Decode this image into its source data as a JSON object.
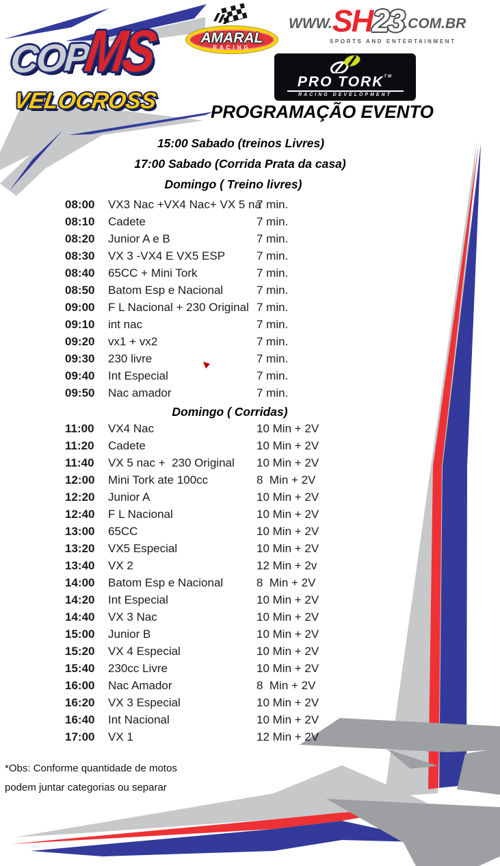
{
  "logos": {
    "copa_ms": {
      "copa": "COPA",
      "ms": "MS",
      "velocross": "VELOCROSS"
    },
    "amaral": {
      "name": "AMARAL",
      "sub": "RACING"
    },
    "sh23": {
      "www": "WWW.",
      "sh": "SH",
      "num": "23",
      "domain": ".COM.BR",
      "sub": "SPORTS AND ENTERTAINMENT"
    },
    "protork": {
      "name": "PRO TORK",
      "tm": "TM",
      "sub": "RACING DEVELOPMENT"
    }
  },
  "title": "PROGRAMAÇÃO EVENTO",
  "pre_schedule": [
    "15:00 Sabado (treinos Livres)",
    "17:00 Sabado (Corrida Prata da casa)"
  ],
  "sections": [
    {
      "header": "Domingo ( Treino livres)",
      "rows": [
        {
          "time": "08:00",
          "category": "VX3 Nac +VX4 Nac+ VX 5 na",
          "duration": "7 min."
        },
        {
          "time": "08:10",
          "category": "Cadete",
          "duration": "7 min."
        },
        {
          "time": "08:20",
          "category": "Junior A e B",
          "duration": "7 min."
        },
        {
          "time": "08:30",
          "category": "VX 3 -VX4 E VX5 ESP",
          "duration": "7 min."
        },
        {
          "time": "08:40",
          "category": "65CC + Mini Tork",
          "duration": "7 min."
        },
        {
          "time": "08:50",
          "category": "Batom Esp e Nacional",
          "duration": "7 min."
        },
        {
          "time": "09:00",
          "category": "F L Nacional + 230 Original",
          "duration": "7 min."
        },
        {
          "time": "09:10",
          "category": "int nac",
          "duration": "7 min."
        },
        {
          "time": "09:20",
          "category": "vx1 + vx2",
          "duration": "7 min."
        },
        {
          "time": "09:30",
          "category": "230 livre",
          "duration": "7 min."
        },
        {
          "time": "09:40",
          "category": "Int Especial",
          "duration": "7 min."
        },
        {
          "time": "09:50",
          "category": "Nac amador",
          "duration": "7 min."
        }
      ]
    },
    {
      "header": "Domingo ( Corridas)",
      "rows": [
        {
          "time": "11:00",
          "category": "VX4 Nac",
          "duration": "10 Min + 2V"
        },
        {
          "time": "11:20",
          "category": "Cadete",
          "duration": "10 Min + 2V"
        },
        {
          "time": "11:40",
          "category": "VX 5 nac +  230 Original",
          "duration": "10 Min + 2V"
        },
        {
          "time": "12:00",
          "category": "Mini Tork ate 100cc",
          "duration": "8  Min + 2V"
        },
        {
          "time": "12:20",
          "category": "Junior A",
          "duration": "10 Min + 2V"
        },
        {
          "time": "12:40",
          "category": "F L Nacional",
          "duration": "10 Min + 2V"
        },
        {
          "time": "13:00",
          "category": "65CC",
          "duration": "10 Min + 2V"
        },
        {
          "time": "13:20",
          "category": "VX5 Especial",
          "duration": "10 Min + 2V"
        },
        {
          "time": "13:40",
          "category": "VX 2",
          "duration": "12 Min + 2v"
        },
        {
          "time": "14:00",
          "category": "Batom Esp e Nacional",
          "duration": "8  Min + 2V"
        },
        {
          "time": "14:20",
          "category": "Int Especial",
          "duration": "10 Min + 2V"
        },
        {
          "time": "14:40",
          "category": "VX 3 Nac",
          "duration": "10 Min + 2V"
        },
        {
          "time": "15:00",
          "category": "Junior B",
          "duration": "10 Min + 2V"
        },
        {
          "time": "15:20",
          "category": "VX 4 Especial",
          "duration": "10 Min + 2V"
        },
        {
          "time": "15:40",
          "category": "230cc Livre",
          "duration": "10 Min + 2V"
        },
        {
          "time": "16:00",
          "category": "Nac Amador",
          "duration": "8  Min + 2V"
        },
        {
          "time": "16:20",
          "category": "VX 3 Especial",
          "duration": "10 Min + 2V"
        },
        {
          "time": "16:40",
          "category": "Int Nacional",
          "duration": "10 Min + 2V"
        },
        {
          "time": "17:00",
          "category": "VX 1",
          "duration": "12 Min + 2V"
        }
      ]
    }
  ],
  "footnote": [
    "*Obs: Conforme quantidade de motos",
    "podem juntar categorias ou separar"
  ],
  "colors": {
    "accent_blue": "#333a9b",
    "accent_red": "#ee3135",
    "swoosh_light_gray": "#c7c8ca",
    "swoosh_dark_gray": "#9d9fa2",
    "logo_yellow": "#ffd400",
    "logo_red": "#e2353b",
    "navy_outline": "#1f2a72",
    "protork_bg": "#0a0c10"
  }
}
